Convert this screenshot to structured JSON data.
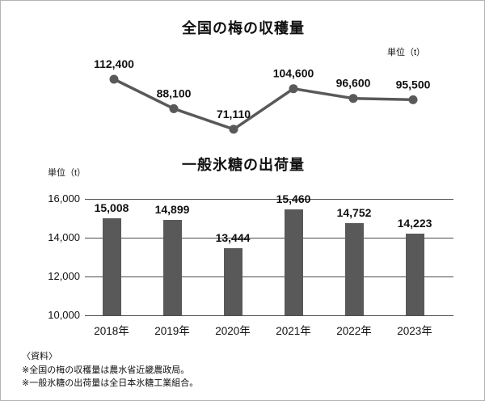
{
  "chart_data": [
    {
      "type": "line",
      "title": "全国の梅の収穫量",
      "unit": "単位（t）",
      "categories": [
        "2018年",
        "2019年",
        "2020年",
        "2021年",
        "2022年",
        "2023年"
      ],
      "values": [
        112400,
        88100,
        71110,
        104600,
        96600,
        95500
      ],
      "labels": [
        "112,400",
        "88,100",
        "71,110",
        "104,600",
        "96,600",
        "95,500"
      ],
      "color": "#595959",
      "legend": "none",
      "grid": false
    },
    {
      "type": "bar",
      "title": "一般氷糖の出荷量",
      "unit": "単位（t）",
      "categories": [
        "2018年",
        "2019年",
        "2020年",
        "2021年",
        "2022年",
        "2023年"
      ],
      "values": [
        15008,
        14899,
        13444,
        15460,
        14752,
        14223
      ],
      "labels": [
        "15,008",
        "14,899",
        "13,444",
        "15,460",
        "14,752",
        "14,223"
      ],
      "y_ticks": [
        {
          "label": "16,000",
          "value": 16000
        },
        {
          "label": "14,000",
          "value": 14000
        },
        {
          "label": "12,000",
          "value": 12000
        },
        {
          "label": "10,000",
          "value": 10000
        }
      ],
      "ylim": [
        10000,
        16000
      ],
      "color": "#595959",
      "legend": "none",
      "grid": true
    }
  ],
  "footer": {
    "source_label": "〈資料〉",
    "notes": [
      "※全国の梅の収穫量は農水省近畿農政局。",
      "※一般氷糖の出荷量は全日本氷糖工業組合。"
    ]
  }
}
